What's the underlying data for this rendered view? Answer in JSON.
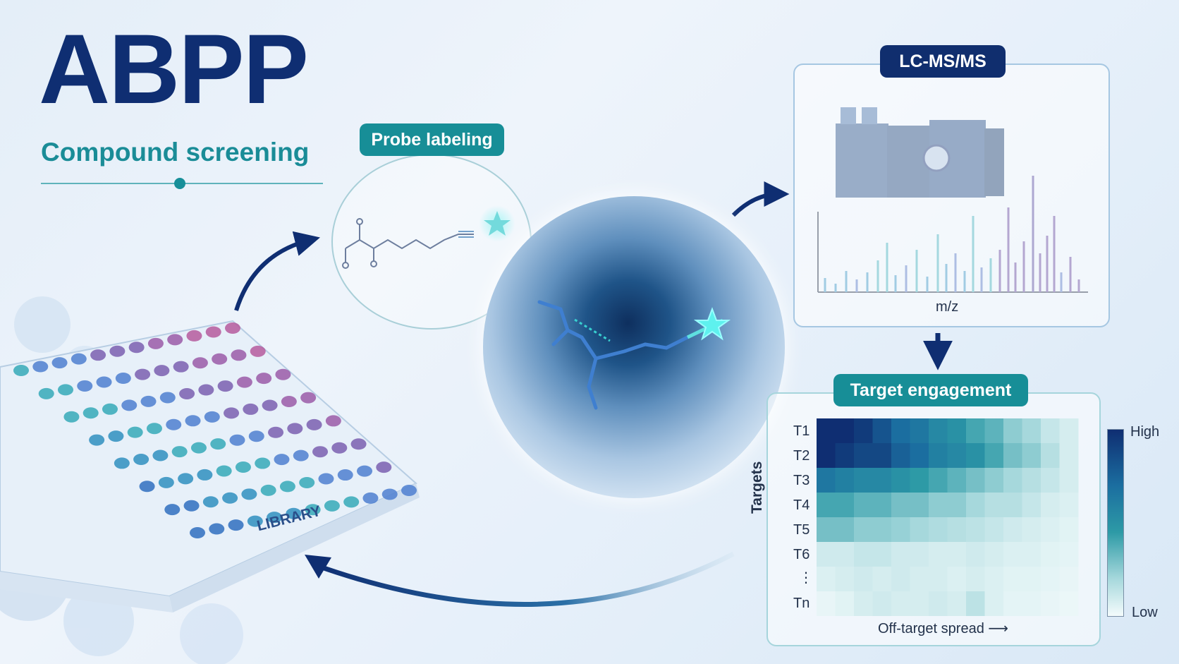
{
  "header": {
    "title": "ABPP",
    "subtitle": "Compound screening"
  },
  "probe": {
    "label": "Probe labeling"
  },
  "plate": {
    "label": "LIBRARY"
  },
  "lcms": {
    "label": "LC-MS/MS",
    "axis_label": "m/z"
  },
  "target_engagement": {
    "label": "Target engagement",
    "y_axis_label": "Targets",
    "x_axis_label": "Off-target spread ⟶",
    "rows": [
      "T1",
      "T2",
      "T3",
      "T4",
      "T5",
      "T6",
      "⋮",
      "Tn"
    ],
    "legend_high": "High",
    "legend_low": "Low"
  },
  "colors": {
    "navy": "#0f2e72",
    "teal": "#178e97",
    "purple": "#5a3c9a"
  },
  "chart_data": {
    "type": "heatmap",
    "rows": [
      "T1",
      "T2",
      "T3",
      "T4",
      "T5",
      "T6",
      "⋮",
      "Tn"
    ],
    "columns": 14,
    "values": [
      [
        1.0,
        1.0,
        0.95,
        0.85,
        0.75,
        0.7,
        0.6,
        0.55,
        0.45,
        0.4,
        0.3,
        0.25,
        0.15,
        0.1
      ],
      [
        1.0,
        0.95,
        0.9,
        0.9,
        0.8,
        0.75,
        0.65,
        0.6,
        0.55,
        0.45,
        0.35,
        0.3,
        0.2,
        0.1
      ],
      [
        0.7,
        0.65,
        0.6,
        0.6,
        0.55,
        0.5,
        0.45,
        0.4,
        0.35,
        0.3,
        0.25,
        0.2,
        0.15,
        0.1
      ],
      [
        0.45,
        0.45,
        0.4,
        0.4,
        0.35,
        0.35,
        0.3,
        0.3,
        0.25,
        0.2,
        0.2,
        0.15,
        0.1,
        0.08
      ],
      [
        0.35,
        0.35,
        0.3,
        0.3,
        0.28,
        0.25,
        0.22,
        0.2,
        0.18,
        0.15,
        0.12,
        0.1,
        0.08,
        0.06
      ],
      [
        0.12,
        0.12,
        0.15,
        0.15,
        0.12,
        0.12,
        0.1,
        0.1,
        0.12,
        0.1,
        0.08,
        0.08,
        0.06,
        0.05
      ],
      [
        0.08,
        0.1,
        0.12,
        0.1,
        0.12,
        0.1,
        0.1,
        0.08,
        0.1,
        0.08,
        0.06,
        0.06,
        0.05,
        0.04
      ],
      [
        0.04,
        0.06,
        0.1,
        0.12,
        0.1,
        0.1,
        0.12,
        0.1,
        0.18,
        0.08,
        0.05,
        0.05,
        0.04,
        0.03
      ]
    ],
    "xlabel": "Off-target spread ⟶",
    "ylabel": "Targets",
    "colorbar": [
      "Low",
      "High"
    ]
  }
}
